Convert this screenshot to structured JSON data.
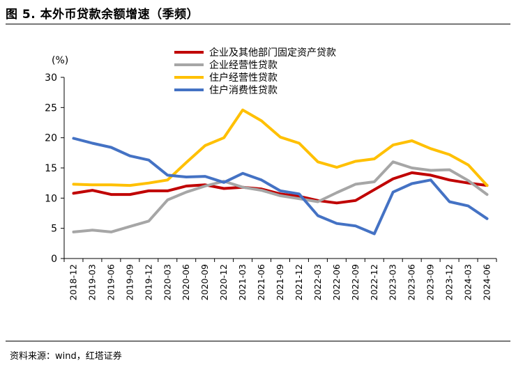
{
  "figure_title": "图 5. 本外币贷款余额增速（季频）",
  "source_text": "资料来源：wind，红塔证券",
  "chart_data": {
    "type": "line",
    "unit": "(%)",
    "ylim": [
      0,
      30
    ],
    "yticks": [
      0,
      5,
      10,
      15,
      20,
      25,
      30
    ],
    "grid": false,
    "legend_position": "top",
    "categories": [
      "2018-12",
      "2019-03",
      "2019-06",
      "2019-09",
      "2019-12",
      "2020-03",
      "2020-06",
      "2020-09",
      "2020-12",
      "2021-03",
      "2021-06",
      "2021-09",
      "2021-12",
      "2022-03",
      "2022-06",
      "2022-09",
      "2022-12",
      "2023-03",
      "2023-06",
      "2023-09",
      "2023-12",
      "2024-03",
      "2024-06"
    ],
    "series": [
      {
        "name": "企业及其他部门固定资产贷款",
        "color": "#C00000",
        "values": [
          10.8,
          11.3,
          10.6,
          10.6,
          11.2,
          11.2,
          12.0,
          12.2,
          11.6,
          11.8,
          11.5,
          10.7,
          10.3,
          9.6,
          9.2,
          9.6,
          11.4,
          13.2,
          14.2,
          13.8,
          13.0,
          12.5,
          12.1
        ]
      },
      {
        "name": "企业经营性贷款",
        "color": "#A6A6A6",
        "values": [
          4.4,
          4.7,
          4.4,
          5.3,
          6.2,
          9.7,
          11.0,
          12.0,
          12.8,
          11.8,
          11.3,
          10.4,
          9.9,
          9.4,
          10.9,
          12.3,
          12.7,
          16.0,
          15.0,
          14.6,
          14.7,
          12.9,
          10.6
        ]
      },
      {
        "name": "住户经营性贷款",
        "color": "#FFC000",
        "values": [
          12.3,
          12.2,
          12.2,
          12.1,
          12.5,
          13.0,
          15.9,
          18.7,
          20.0,
          24.6,
          22.8,
          20.1,
          19.1,
          16.0,
          15.1,
          16.1,
          16.5,
          18.8,
          19.5,
          18.2,
          17.2,
          15.5,
          12.1
        ]
      },
      {
        "name": "住户消费性贷款",
        "color": "#4472C4",
        "values": [
          19.9,
          19.1,
          18.4,
          17.0,
          16.3,
          13.8,
          13.5,
          13.6,
          12.6,
          14.1,
          13.0,
          11.2,
          10.7,
          7.1,
          5.8,
          5.4,
          4.1,
          11.0,
          12.4,
          13.0,
          9.4,
          8.7,
          6.6
        ]
      }
    ]
  }
}
